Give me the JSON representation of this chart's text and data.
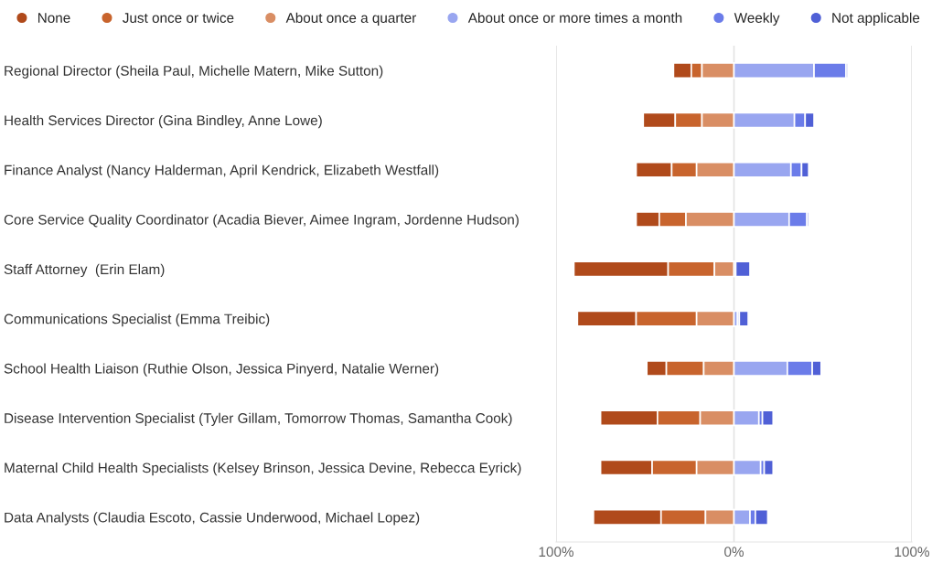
{
  "chart_data": {
    "type": "bar",
    "orientation": "horizontal",
    "categories": [
      "Regional Director (Sheila Paul, Michelle Matern, Mike Sutton)",
      "Health Services Director (Gina Bindley, Anne Lowe)",
      "Finance Analyst (Nancy Halderman, April Kendrick, Elizabeth Westfall)",
      "Core Service Quality Coordinator (Acadia Biever, Aimee Ingram, Jordenne Hudson)",
      "Staff Attorney  (Erin Elam)",
      "Communications Specialist (Emma Treibic)",
      "School Health Liaison (Ruthie Olson, Jessica Pinyerd, Natalie Werner)",
      "Disease Intervention Specialist (Tyler Gillam, Tomorrow Thomas, Samantha Cook)",
      "Maternal Child Health Specialists (Kelsey Brinson, Jessica Devine, Rebecca Eyrick)",
      "Data Analysts (Claudia Escoto, Cassie Underwood, Michael Lopez)"
    ],
    "series": [
      {
        "name": "None",
        "color": "#b04a1b",
        "values": [
          10,
          18,
          20,
          13,
          53,
          33,
          11,
          32,
          29,
          38
        ],
        "base": [
          -34,
          -51,
          -55,
          -55,
          -90,
          -88,
          -49,
          -75,
          -75,
          -79
        ]
      },
      {
        "name": "Just once or twice",
        "color": "#c8642d",
        "values": [
          6,
          15,
          14,
          15,
          26,
          34,
          21,
          24,
          25,
          25
        ],
        "base": [
          -24,
          -33,
          -35,
          -42,
          -37,
          -55,
          -38,
          -43,
          -46,
          -41
        ]
      },
      {
        "name": "About once a quarter",
        "color": "#d98e64",
        "values": [
          18,
          18,
          21,
          27,
          11,
          21,
          17,
          19,
          21,
          16
        ],
        "base": [
          -18,
          -18,
          -21,
          -27,
          -11,
          -21,
          -17,
          -19,
          -21,
          -16
        ]
      },
      {
        "name": "About once or more times a month",
        "color": "#99a6f0",
        "values": [
          45,
          34,
          32,
          31,
          1,
          2,
          30,
          14,
          15,
          9
        ],
        "base": [
          0,
          0,
          0,
          0,
          0,
          0,
          0,
          0,
          0,
          0
        ]
      },
      {
        "name": "Weekly",
        "color": "#6b7ce9",
        "values": [
          18,
          6,
          6,
          10,
          null,
          1,
          14,
          2,
          2,
          3
        ],
        "base": [
          45,
          34,
          32,
          31,
          null,
          2,
          30,
          14,
          15,
          9
        ]
      },
      {
        "name": "Not applicable",
        "color": "#5060d6",
        "values": [
          1,
          5,
          4,
          1,
          8,
          5,
          5,
          6,
          5,
          7
        ],
        "base": [
          63,
          40,
          38,
          41,
          1,
          3,
          44,
          16,
          17,
          12
        ]
      }
    ],
    "xlim": [
      -100,
      100
    ],
    "xticks": [
      {
        "value": -100,
        "label": "100%"
      },
      {
        "value": 0,
        "label": "0%"
      },
      {
        "value": 100,
        "label": "100%"
      }
    ],
    "grid": "x",
    "legend": "top",
    "marker": "circle"
  }
}
